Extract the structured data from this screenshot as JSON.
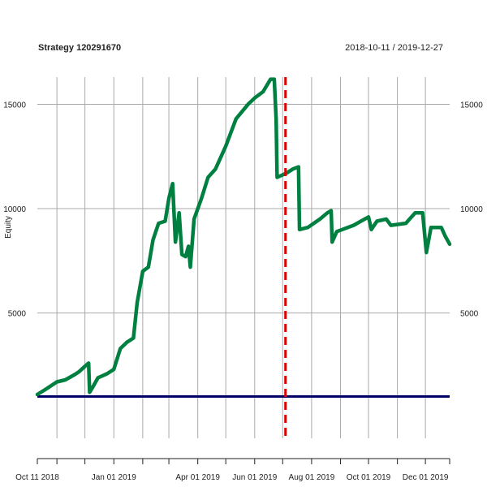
{
  "chart_data": {
    "type": "line",
    "title": "Strategy 120291670",
    "date_range": "2018-10-11 / 2019-12-27",
    "ylabel": "Equity",
    "xlabel": "",
    "x_start": "2018-10-11",
    "x_end": "2019-12-27",
    "ylim": [
      -1000,
      16300
    ],
    "x_ticks": [
      {
        "date": "2018-10-11",
        "label": "Oct 11 2018"
      },
      {
        "date": "2018-11-01",
        "label": ""
      },
      {
        "date": "2018-12-01",
        "label": ""
      },
      {
        "date": "2019-01-01",
        "label": "Jan 01 2019"
      },
      {
        "date": "2019-02-01",
        "label": ""
      },
      {
        "date": "2019-03-01",
        "label": ""
      },
      {
        "date": "2019-04-01",
        "label": "Apr 01 2019"
      },
      {
        "date": "2019-05-01",
        "label": ""
      },
      {
        "date": "2019-06-01",
        "label": "Jun 01 2019"
      },
      {
        "date": "2019-07-01",
        "label": ""
      },
      {
        "date": "2019-08-01",
        "label": "Aug 01 2019"
      },
      {
        "date": "2019-09-01",
        "label": ""
      },
      {
        "date": "2019-10-01",
        "label": "Oct 01 2019"
      },
      {
        "date": "2019-11-01",
        "label": ""
      },
      {
        "date": "2019-12-01",
        "label": "Dec 01 2019"
      },
      {
        "date": "2019-12-27",
        "label": ""
      }
    ],
    "y_ticks": [
      {
        "value": 5000,
        "label": "5000"
      },
      {
        "value": 10000,
        "label": "10000"
      },
      {
        "value": 15000,
        "label": "15000"
      }
    ],
    "grid": true,
    "vline": {
      "date": "2019-07-04",
      "color": "#e00000",
      "style": "dashed"
    },
    "hline": {
      "value": 1000,
      "color": "#000066"
    },
    "series": [
      {
        "color": "#008040",
        "points": [
          [
            "2018-10-11",
            1100
          ],
          [
            "2018-10-20",
            1350
          ],
          [
            "2018-11-01",
            1700
          ],
          [
            "2018-11-10",
            1800
          ],
          [
            "2018-11-20",
            2050
          ],
          [
            "2018-11-25",
            2200
          ],
          [
            "2018-12-01",
            2450
          ],
          [
            "2018-12-05",
            2600
          ],
          [
            "2018-12-06",
            1200
          ],
          [
            "2018-12-10",
            1500
          ],
          [
            "2018-12-15",
            1900
          ],
          [
            "2018-12-25",
            2100
          ],
          [
            "2019-01-01",
            2300
          ],
          [
            "2019-01-08",
            3300
          ],
          [
            "2019-01-15",
            3600
          ],
          [
            "2019-01-22",
            3800
          ],
          [
            "2019-01-26",
            5500
          ],
          [
            "2019-02-01",
            7000
          ],
          [
            "2019-02-07",
            7200
          ],
          [
            "2019-02-12",
            8500
          ],
          [
            "2019-02-18",
            9300
          ],
          [
            "2019-02-25",
            9400
          ],
          [
            "2019-03-01",
            10500
          ],
          [
            "2019-03-05",
            11200
          ],
          [
            "2019-03-08",
            8400
          ],
          [
            "2019-03-12",
            9800
          ],
          [
            "2019-03-15",
            7800
          ],
          [
            "2019-03-19",
            7700
          ],
          [
            "2019-03-22",
            8200
          ],
          [
            "2019-03-24",
            7200
          ],
          [
            "2019-03-28",
            9500
          ],
          [
            "2019-04-05",
            10500
          ],
          [
            "2019-04-12",
            11500
          ],
          [
            "2019-04-20",
            11900
          ],
          [
            "2019-05-01",
            13000
          ],
          [
            "2019-05-12",
            14300
          ],
          [
            "2019-05-25",
            15000
          ],
          [
            "2019-06-01",
            15300
          ],
          [
            "2019-06-10",
            15600
          ],
          [
            "2019-06-18",
            16200
          ],
          [
            "2019-06-22",
            16200
          ],
          [
            "2019-06-24",
            14300
          ],
          [
            "2019-06-25",
            11500
          ],
          [
            "2019-07-05",
            11700
          ],
          [
            "2019-07-12",
            11900
          ],
          [
            "2019-07-18",
            12000
          ],
          [
            "2019-07-19",
            9000
          ],
          [
            "2019-07-28",
            9100
          ],
          [
            "2019-08-10",
            9500
          ],
          [
            "2019-08-18",
            9800
          ],
          [
            "2019-08-22",
            9900
          ],
          [
            "2019-08-23",
            8400
          ],
          [
            "2019-08-28",
            8900
          ],
          [
            "2019-09-15",
            9200
          ],
          [
            "2019-10-01",
            9600
          ],
          [
            "2019-10-04",
            9000
          ],
          [
            "2019-10-10",
            9400
          ],
          [
            "2019-10-20",
            9500
          ],
          [
            "2019-10-25",
            9200
          ],
          [
            "2019-11-10",
            9300
          ],
          [
            "2019-11-20",
            9800
          ],
          [
            "2019-11-28",
            9800
          ],
          [
            "2019-12-02",
            7900
          ],
          [
            "2019-12-07",
            9100
          ],
          [
            "2019-12-18",
            9100
          ],
          [
            "2019-12-22",
            8700
          ],
          [
            "2019-12-27",
            8300
          ]
        ]
      }
    ]
  }
}
